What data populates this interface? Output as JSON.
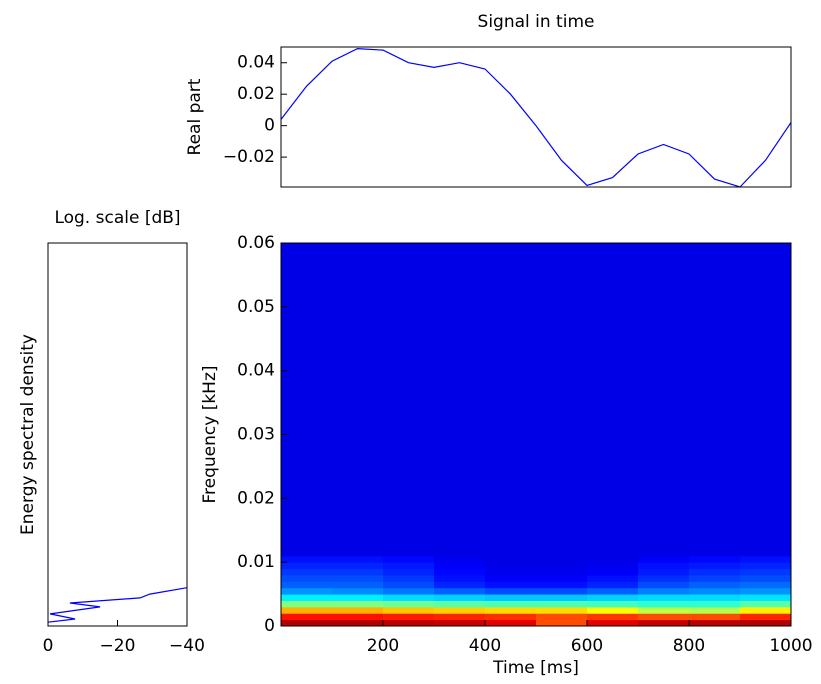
{
  "chart_data": [
    {
      "type": "line",
      "title": "Signal in time",
      "ylabel": "Real part",
      "color": "#0000ff",
      "x": [
        0,
        50,
        100,
        150,
        200,
        250,
        300,
        350,
        400,
        450,
        500,
        550,
        600,
        650,
        700,
        750,
        800,
        850,
        900,
        950,
        1000
      ],
      "values": [
        0.004,
        0.025,
        0.041,
        0.049,
        0.048,
        0.04,
        0.037,
        0.04,
        0.036,
        0.02,
        0.0,
        -0.022,
        -0.038,
        -0.033,
        -0.018,
        -0.012,
        -0.018,
        -0.034,
        -0.039,
        -0.022,
        0.002
      ],
      "xlim": [
        0,
        1000
      ],
      "ylim": [
        -0.039,
        0.05
      ],
      "yticks": [
        0.04,
        0.02,
        0,
        {
          "value": -0.02,
          "label": "−0.02"
        }
      ]
    },
    {
      "type": "line",
      "title": "Log. scale [dB]",
      "ylabel": "Energy spectral density",
      "color": "#0000ff",
      "x": [
        0,
        -7.8,
        -0.6,
        -15,
        -6.3,
        -26.5,
        -29.3,
        -40
      ],
      "values": [
        0.0006,
        0.0011,
        0.0019,
        0.003,
        0.0036,
        0.0044,
        0.005,
        0.006
      ],
      "xlim": [
        0,
        -40
      ],
      "ylim": [
        0,
        0.06
      ],
      "xticks": [
        0,
        {
          "value": -20,
          "label": "−20"
        },
        {
          "value": -40,
          "label": "−40"
        }
      ]
    },
    {
      "type": "heatmap",
      "xlabel": "Time [ms]",
      "ylabel": "Frequency [kHz]",
      "colormap": "jet",
      "x_bins": [
        0,
        100,
        200,
        300,
        400,
        500,
        600,
        700,
        800,
        900,
        1000
      ],
      "y_bins": [
        0,
        0.001,
        0.002,
        0.003,
        0.004,
        0.005,
        0.006,
        0.007,
        0.008,
        0.009,
        0.01,
        0.011,
        0.012,
        0.06
      ],
      "z": [
        [
          0.95,
          0.95,
          0.94,
          0.93,
          0.9,
          0.8,
          0.9,
          0.93,
          0.94,
          0.95
        ],
        [
          0.86,
          0.86,
          0.85,
          0.84,
          0.83,
          0.8,
          0.82,
          0.8,
          0.8,
          0.84
        ],
        [
          0.7,
          0.7,
          0.68,
          0.67,
          0.66,
          0.66,
          0.62,
          0.56,
          0.55,
          0.64
        ],
        [
          0.5,
          0.5,
          0.48,
          0.46,
          0.45,
          0.45,
          0.44,
          0.42,
          0.42,
          0.46
        ],
        [
          0.36,
          0.36,
          0.34,
          0.33,
          0.32,
          0.32,
          0.33,
          0.34,
          0.34,
          0.35
        ],
        [
          0.27,
          0.26,
          0.24,
          0.22,
          0.2,
          0.2,
          0.22,
          0.25,
          0.26,
          0.27
        ],
        [
          0.22,
          0.22,
          0.2,
          0.16,
          0.14,
          0.14,
          0.16,
          0.2,
          0.22,
          0.23
        ],
        [
          0.2,
          0.2,
          0.18,
          0.14,
          0.12,
          0.12,
          0.14,
          0.17,
          0.19,
          0.2
        ],
        [
          0.18,
          0.18,
          0.16,
          0.13,
          0.11,
          0.11,
          0.12,
          0.15,
          0.17,
          0.18
        ],
        [
          0.16,
          0.16,
          0.15,
          0.12,
          0.1,
          0.1,
          0.11,
          0.14,
          0.15,
          0.16
        ],
        [
          0.14,
          0.14,
          0.13,
          0.11,
          0.1,
          0.1,
          0.1,
          0.12,
          0.13,
          0.14
        ],
        [
          0.1,
          0.1,
          0.1,
          0.1,
          0.1,
          0.1,
          0.1,
          0.1,
          0.1,
          0.1
        ],
        [
          0.1,
          0.1,
          0.1,
          0.1,
          0.1,
          0.1,
          0.1,
          0.1,
          0.1,
          0.1
        ]
      ],
      "xlim": [
        0,
        1000
      ],
      "ylim": [
        0,
        0.06
      ],
      "xticks": [
        200,
        400,
        600,
        800,
        1000
      ],
      "yticks": [
        0,
        0.01,
        0.02,
        0.03,
        0.04,
        0.05,
        0.06
      ]
    }
  ]
}
